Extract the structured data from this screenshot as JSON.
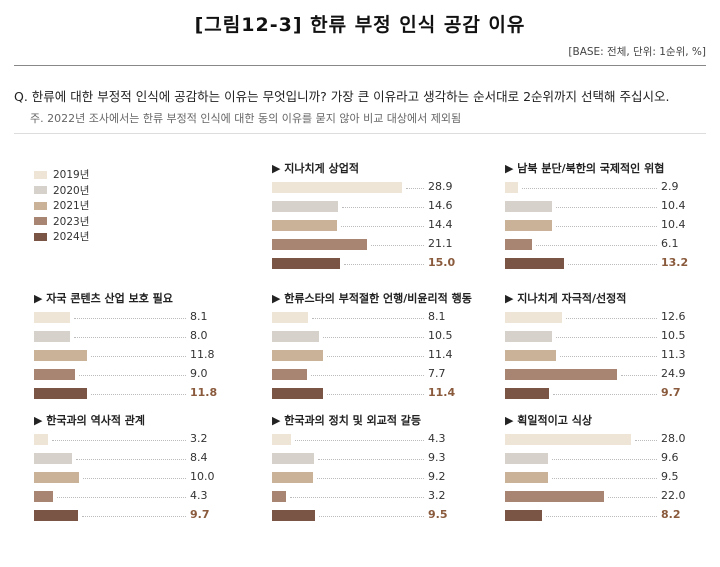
{
  "header": {
    "title": "[그림12-3] 한류 부정 인식 공감 이유",
    "base": "[BASE: 전체, 단위: 1순위, %]",
    "question": "Q. 한류에 대한 부정적 인식에 공감하는 이유는 무엇입니까? 가장 큰 이유라고 생각하는 순서대로 2순위까지 선택해 주십시오.",
    "note": "주. 2022년 조사에서는 한류 부정적 인식에 대한 동의 이유를 묻지 않아 비교 대상에서 제외됨"
  },
  "colors": [
    "#efe5d7",
    "#d6d1cb",
    "#c9b297",
    "#a88572",
    "#7a5545"
  ],
  "chart_data": [
    {
      "type": "bar",
      "title": "지나치게 상업적",
      "series": [
        {
          "name": "2019년",
          "value": 28.9
        },
        {
          "name": "2020년",
          "value": 14.6
        },
        {
          "name": "2021년",
          "value": 14.4
        },
        {
          "name": "2023년",
          "value": 21.1
        },
        {
          "name": "2024년",
          "value": 15.0
        }
      ],
      "labels": [
        "28.9",
        "14.6",
        "14.4",
        "21.1",
        "15.0"
      ]
    },
    {
      "type": "bar",
      "title": "남북 분단/북한의 국제적인 위협",
      "series": [
        {
          "name": "2019년",
          "value": 2.9
        },
        {
          "name": "2020년",
          "value": 10.4
        },
        {
          "name": "2021년",
          "value": 10.4
        },
        {
          "name": "2023년",
          "value": 6.1
        },
        {
          "name": "2024년",
          "value": 13.2
        }
      ],
      "labels": [
        "2.9",
        "10.4",
        "10.4",
        "6.1",
        "13.2"
      ]
    },
    {
      "type": "bar",
      "title": "자국 콘텐츠 산업 보호 필요",
      "series": [
        {
          "name": "2019년",
          "value": 8.1
        },
        {
          "name": "2020년",
          "value": 8.0
        },
        {
          "name": "2021년",
          "value": 11.8
        },
        {
          "name": "2023년",
          "value": 9.0
        },
        {
          "name": "2024년",
          "value": 11.8
        }
      ],
      "labels": [
        "8.1",
        "8.0",
        "11.8",
        "9.0",
        "11.8"
      ]
    },
    {
      "type": "bar",
      "title": "한류스타의 부적절한 언행/비윤리적 행동",
      "series": [
        {
          "name": "2019년",
          "value": 8.1
        },
        {
          "name": "2020년",
          "value": 10.5
        },
        {
          "name": "2021년",
          "value": 11.4
        },
        {
          "name": "2023년",
          "value": 7.7
        },
        {
          "name": "2024년",
          "value": 11.4
        }
      ],
      "labels": [
        "8.1",
        "10.5",
        "11.4",
        "7.7",
        "11.4"
      ]
    },
    {
      "type": "bar",
      "title": "지나치게 자극적/선정적",
      "series": [
        {
          "name": "2019년",
          "value": 12.6
        },
        {
          "name": "2020년",
          "value": 10.5
        },
        {
          "name": "2021년",
          "value": 11.3
        },
        {
          "name": "2023년",
          "value": 24.9
        },
        {
          "name": "2024년",
          "value": 9.7
        }
      ],
      "labels": [
        "12.6",
        "10.5",
        "11.3",
        "24.9",
        "9.7"
      ]
    },
    {
      "type": "bar",
      "title": "한국과의 역사적 관계",
      "series": [
        {
          "name": "2019년",
          "value": 3.2
        },
        {
          "name": "2020년",
          "value": 8.4
        },
        {
          "name": "2021년",
          "value": 10.0
        },
        {
          "name": "2023년",
          "value": 4.3
        },
        {
          "name": "2024년",
          "value": 9.7
        }
      ],
      "labels": [
        "3.2",
        "8.4",
        "10.0",
        "4.3",
        "9.7"
      ]
    },
    {
      "type": "bar",
      "title": "한국과의 정치 및 외교적 갈등",
      "series": [
        {
          "name": "2019년",
          "value": 4.3
        },
        {
          "name": "2020년",
          "value": 9.3
        },
        {
          "name": "2021년",
          "value": 9.2
        },
        {
          "name": "2023년",
          "value": 3.2
        },
        {
          "name": "2024년",
          "value": 9.5
        }
      ],
      "labels": [
        "4.3",
        "9.3",
        "9.2",
        "3.2",
        "9.5"
      ]
    },
    {
      "type": "bar",
      "title": "획일적이고 식상",
      "series": [
        {
          "name": "2019년",
          "value": 28.0
        },
        {
          "name": "2020년",
          "value": 9.6
        },
        {
          "name": "2021년",
          "value": 9.5
        },
        {
          "name": "2023년",
          "value": 22.0
        },
        {
          "name": "2024년",
          "value": 8.2
        }
      ],
      "labels": [
        "28.0",
        "9.6",
        "9.5",
        "22.0",
        "8.2"
      ]
    }
  ]
}
